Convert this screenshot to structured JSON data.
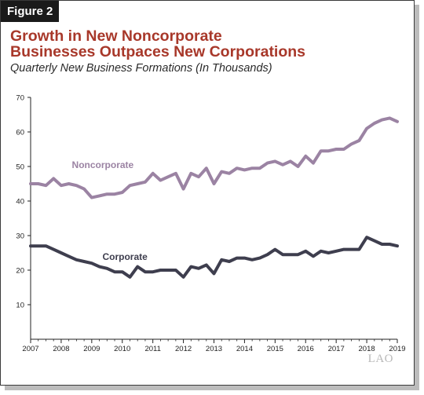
{
  "figure_label": "Figure 2",
  "title_line1": "Growth in New Noncorporate",
  "title_line2": "Businesses Outpaces New Corporations",
  "subtitle": "Quarterly New Business Formations (In Thousands)",
  "logo": "LAO",
  "colors": {
    "noncorporate": "#9b83a3",
    "corporate": "#3e3e4e",
    "title": "#a8382a"
  },
  "chart_data": {
    "type": "line",
    "title": "Growth in New Noncorporate Businesses Outpaces New Corporations",
    "subtitle": "Quarterly New Business Formations (In Thousands)",
    "xlabel": "",
    "ylabel": "",
    "ylim": [
      0,
      70
    ],
    "yticks": [
      10,
      20,
      30,
      40,
      50,
      60,
      70
    ],
    "xlim": [
      2007,
      2019
    ],
    "xticks": [
      "2007",
      "2008",
      "2009",
      "2010",
      "2011",
      "2012",
      "2013",
      "2014",
      "2015",
      "2016",
      "2017",
      "2018",
      "2019"
    ],
    "grid": false,
    "series": [
      {
        "name": "Noncorporate",
        "x": [
          2007.0,
          2007.25,
          2007.5,
          2007.75,
          2008.0,
          2008.25,
          2008.5,
          2008.75,
          2009.0,
          2009.25,
          2009.5,
          2009.75,
          2010.0,
          2010.25,
          2010.5,
          2010.75,
          2011.0,
          2011.25,
          2011.5,
          2011.75,
          2012.0,
          2012.25,
          2012.5,
          2012.75,
          2013.0,
          2013.25,
          2013.5,
          2013.75,
          2014.0,
          2014.25,
          2014.5,
          2014.75,
          2015.0,
          2015.25,
          2015.5,
          2015.75,
          2016.0,
          2016.25,
          2016.5,
          2016.75,
          2017.0,
          2017.25,
          2017.5,
          2017.75,
          2018.0,
          2018.25,
          2018.5,
          2018.75,
          2019.0
        ],
        "values": [
          45.0,
          45.0,
          44.5,
          46.5,
          44.5,
          45.0,
          44.5,
          43.5,
          41.0,
          41.5,
          42.0,
          42.0,
          42.5,
          44.5,
          45.0,
          45.5,
          48.0,
          46.0,
          47.0,
          48.0,
          43.5,
          48.0,
          47.0,
          49.5,
          45.0,
          48.5,
          48.0,
          49.5,
          49.0,
          49.5,
          49.5,
          51.0,
          51.5,
          50.5,
          51.5,
          50.0,
          53.0,
          51.0,
          54.5,
          54.5,
          55.0,
          55.0,
          56.5,
          57.5,
          61.0,
          62.5,
          63.5,
          64.0,
          63.0
        ]
      },
      {
        "name": "Corporate",
        "x": [
          2007.0,
          2007.25,
          2007.5,
          2007.75,
          2008.0,
          2008.25,
          2008.5,
          2008.75,
          2009.0,
          2009.25,
          2009.5,
          2009.75,
          2010.0,
          2010.25,
          2010.5,
          2010.75,
          2011.0,
          2011.25,
          2011.5,
          2011.75,
          2012.0,
          2012.25,
          2012.5,
          2012.75,
          2013.0,
          2013.25,
          2013.5,
          2013.75,
          2014.0,
          2014.25,
          2014.5,
          2014.75,
          2015.0,
          2015.25,
          2015.5,
          2015.75,
          2016.0,
          2016.25,
          2016.5,
          2016.75,
          2017.0,
          2017.25,
          2017.5,
          2017.75,
          2018.0,
          2018.25,
          2018.5,
          2018.75,
          2019.0
        ],
        "values": [
          27.0,
          27.0,
          27.0,
          26.0,
          25.0,
          24.0,
          23.0,
          22.5,
          22.0,
          21.0,
          20.5,
          19.5,
          19.5,
          18.0,
          21.0,
          19.5,
          19.5,
          20.0,
          20.0,
          20.0,
          18.0,
          21.0,
          20.5,
          21.5,
          19.0,
          23.0,
          22.5,
          23.5,
          23.5,
          23.0,
          23.5,
          24.5,
          26.0,
          24.5,
          24.5,
          24.5,
          25.5,
          24.0,
          25.5,
          25.0,
          25.5,
          26.0,
          26.0,
          26.0,
          29.5,
          28.5,
          27.5,
          27.5,
          27.0
        ]
      }
    ]
  }
}
